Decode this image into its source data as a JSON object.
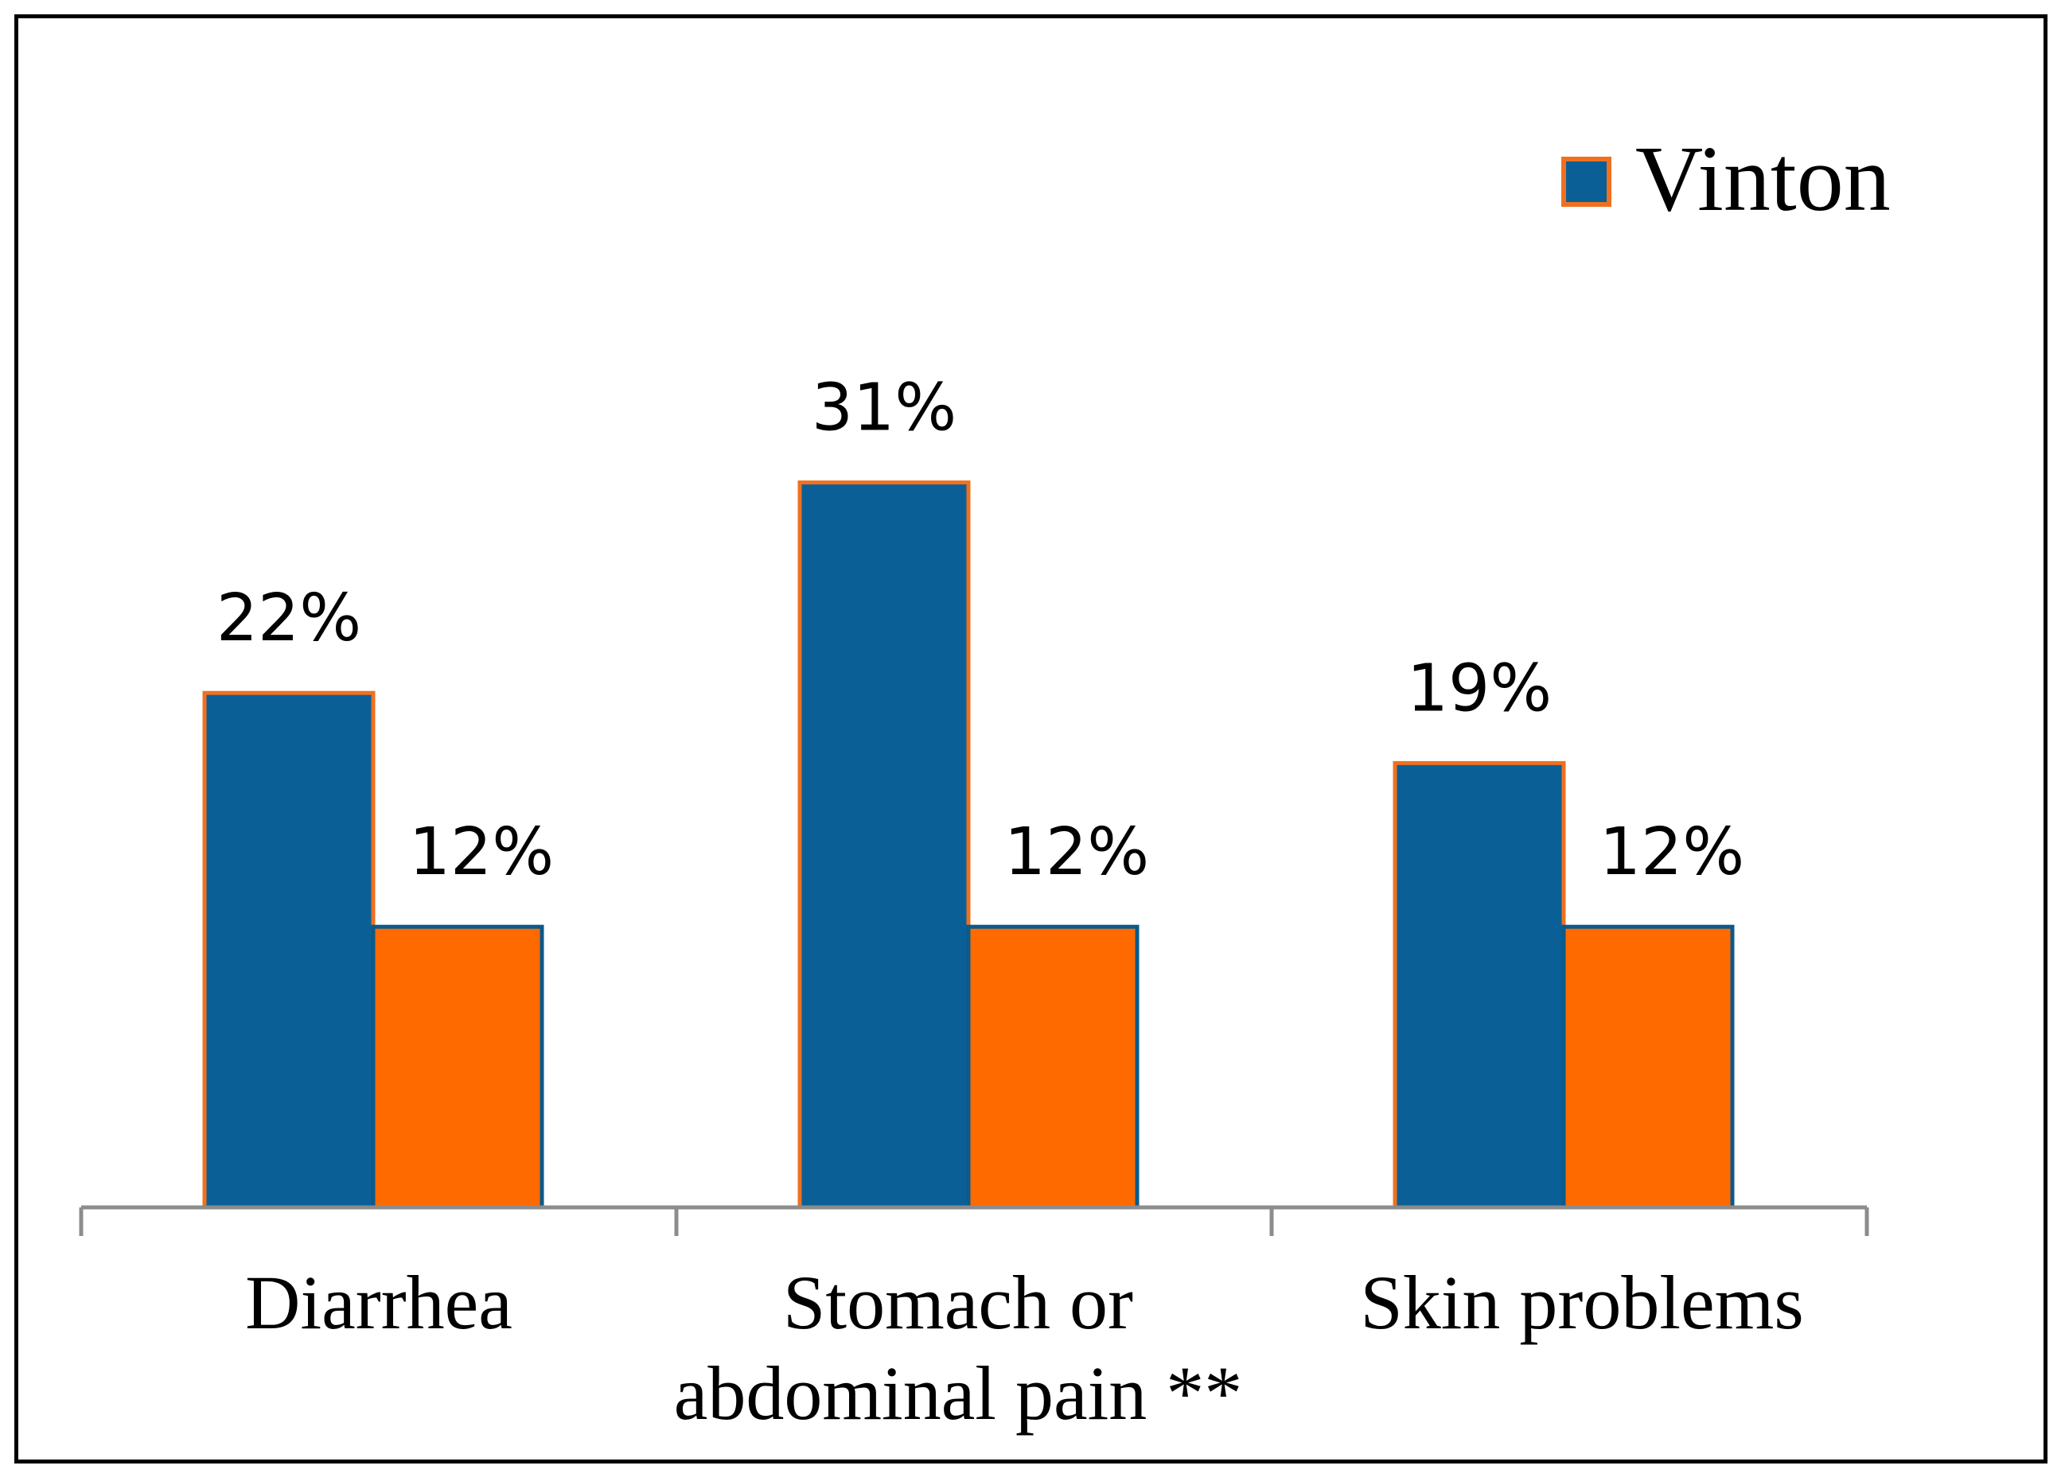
{
  "chart_data": {
    "type": "bar",
    "title": "",
    "xlabel": "",
    "ylabel": "",
    "ylim": [
      0,
      33
    ],
    "grid": false,
    "legend_position": "top-right",
    "categories": [
      [
        "Diarrhea"
      ],
      [
        "Stomach or",
        "abdominal pain **"
      ],
      [
        "Skin problems"
      ]
    ],
    "series": [
      {
        "name": "Vinton",
        "values": [
          22,
          31,
          19
        ],
        "labels": [
          "22%",
          "31%",
          "19%"
        ],
        "fill": "#0a6096",
        "stroke": "#f07020",
        "in_legend": true
      },
      {
        "name": "",
        "values": [
          12,
          12,
          12
        ],
        "labels": [
          "12%",
          "12%",
          "12%"
        ],
        "fill": "#ff6a00",
        "stroke": "#0a5a8c",
        "in_legend": false
      }
    ]
  }
}
